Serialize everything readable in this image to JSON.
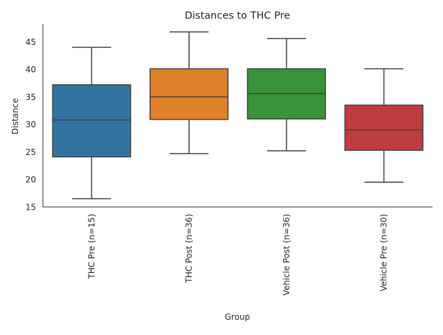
{
  "chart_data": {
    "type": "box",
    "title": "Distances to THC Pre",
    "xlabel": "Group",
    "ylabel": "Distance",
    "ylim": [
      15,
      48.2
    ],
    "yticks": [
      15,
      20,
      25,
      30,
      35,
      40,
      45
    ],
    "grid": false,
    "categories": [
      "THC Pre (n=15)",
      "THC Post (n=36)",
      "Vehicle Post (n=36)",
      "Vehicle Pre (n=30)"
    ],
    "boxes": [
      {
        "whisker_low": 16.5,
        "q1": 24.1,
        "median": 30.8,
        "q3": 37.2,
        "whisker_high": 44.0,
        "color": "#3274a1"
      },
      {
        "whisker_low": 24.7,
        "q1": 30.9,
        "median": 35.0,
        "q3": 40.1,
        "whisker_high": 46.8,
        "color": "#e1812c"
      },
      {
        "whisker_low": 25.2,
        "q1": 31.0,
        "median": 35.6,
        "q3": 40.1,
        "whisker_high": 45.6,
        "color": "#3a923a"
      },
      {
        "whisker_low": 19.5,
        "q1": 25.3,
        "median": 29.0,
        "q3": 33.5,
        "whisker_high": 40.1,
        "color": "#c03d3e"
      }
    ]
  }
}
